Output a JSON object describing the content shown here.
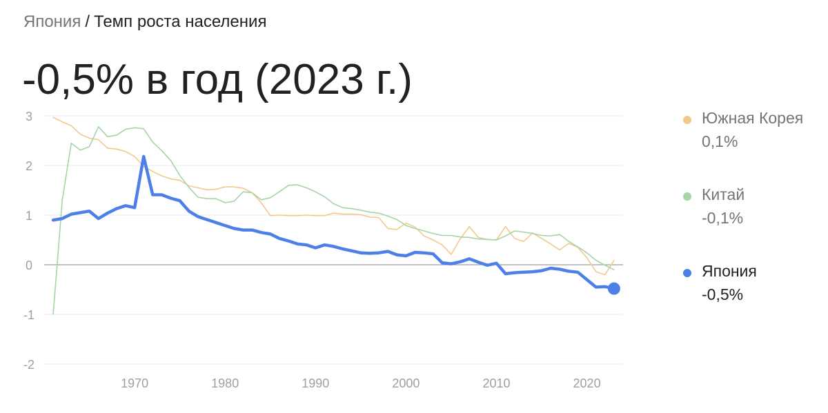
{
  "breadcrumb": {
    "root": "Япония",
    "separator": "/",
    "current": "Темп роста населения"
  },
  "headline": "-0,5% в год (2023 г.)",
  "chart_data": {
    "type": "line",
    "title": "",
    "xlabel": "",
    "ylabel": "",
    "xlim": [
      1960,
      2024
    ],
    "ylim": [
      -2,
      3
    ],
    "y_ticks": [
      3,
      2,
      1,
      0,
      -1,
      -2
    ],
    "y_tick_labels": [
      "3",
      "2",
      "1",
      "0",
      "-1",
      "-2"
    ],
    "x_ticks": [
      1970,
      1980,
      1990,
      2000,
      2010,
      2020
    ],
    "x_tick_labels": [
      "1970",
      "1980",
      "1990",
      "2000",
      "2010",
      "2020"
    ],
    "grid": true,
    "legend_position": "right",
    "x": [
      1961,
      1962,
      1963,
      1964,
      1965,
      1966,
      1967,
      1968,
      1969,
      1970,
      1971,
      1972,
      1973,
      1974,
      1975,
      1976,
      1977,
      1978,
      1979,
      1980,
      1981,
      1982,
      1983,
      1984,
      1985,
      1986,
      1987,
      1988,
      1989,
      1990,
      1991,
      1992,
      1993,
      1994,
      1995,
      1996,
      1997,
      1998,
      1999,
      2000,
      2001,
      2002,
      2003,
      2004,
      2005,
      2006,
      2007,
      2008,
      2009,
      2010,
      2011,
      2012,
      2013,
      2014,
      2015,
      2016,
      2017,
      2018,
      2019,
      2020,
      2021,
      2022,
      2023
    ],
    "series": [
      {
        "name": "Южная Корея",
        "latest_label": "0,1%",
        "color": "#f2c98a",
        "values": [
          2.97,
          2.88,
          2.8,
          2.63,
          2.55,
          2.52,
          2.35,
          2.33,
          2.28,
          2.18,
          1.98,
          1.88,
          1.79,
          1.73,
          1.7,
          1.59,
          1.55,
          1.51,
          1.52,
          1.57,
          1.57,
          1.54,
          1.45,
          1.25,
          0.99,
          1.0,
          0.99,
          0.99,
          1.0,
          0.99,
          0.99,
          1.04,
          1.02,
          1.02,
          1.01,
          0.96,
          0.95,
          0.73,
          0.71,
          0.84,
          0.76,
          0.58,
          0.5,
          0.4,
          0.21,
          0.52,
          0.77,
          0.55,
          0.51,
          0.5,
          0.77,
          0.53,
          0.47,
          0.64,
          0.53,
          0.42,
          0.3,
          0.43,
          0.35,
          0.14,
          -0.14,
          -0.2,
          0.09
        ]
      },
      {
        "name": "Китай",
        "latest_label": "-0,1%",
        "color": "#a5d4a5",
        "values": [
          -1.0,
          1.3,
          2.45,
          2.31,
          2.38,
          2.78,
          2.58,
          2.61,
          2.73,
          2.76,
          2.74,
          2.47,
          2.3,
          2.1,
          1.8,
          1.56,
          1.36,
          1.33,
          1.33,
          1.25,
          1.28,
          1.47,
          1.45,
          1.31,
          1.35,
          1.47,
          1.6,
          1.61,
          1.55,
          1.47,
          1.37,
          1.23,
          1.15,
          1.13,
          1.1,
          1.06,
          1.04,
          0.98,
          0.91,
          0.79,
          0.73,
          0.68,
          0.63,
          0.59,
          0.59,
          0.56,
          0.55,
          0.52,
          0.51,
          0.5,
          0.58,
          0.68,
          0.66,
          0.63,
          0.59,
          0.58,
          0.61,
          0.47,
          0.36,
          0.24,
          0.09,
          -0.01,
          -0.1
        ]
      },
      {
        "name": "Япония",
        "latest_label": "-0,5%",
        "color": "#4d80e6",
        "values": [
          0.9,
          0.93,
          1.02,
          1.05,
          1.08,
          0.93,
          1.04,
          1.13,
          1.19,
          1.15,
          2.18,
          1.41,
          1.41,
          1.34,
          1.29,
          1.08,
          0.97,
          0.91,
          0.85,
          0.79,
          0.73,
          0.7,
          0.7,
          0.65,
          0.62,
          0.53,
          0.48,
          0.42,
          0.4,
          0.34,
          0.4,
          0.37,
          0.32,
          0.28,
          0.24,
          0.23,
          0.24,
          0.27,
          0.2,
          0.18,
          0.25,
          0.24,
          0.22,
          0.04,
          0.02,
          0.06,
          0.12,
          0.05,
          -0.01,
          0.03,
          -0.18,
          -0.16,
          -0.15,
          -0.14,
          -0.12,
          -0.07,
          -0.09,
          -0.13,
          -0.15,
          -0.3,
          -0.45,
          -0.44,
          -0.48
        ]
      }
    ]
  }
}
